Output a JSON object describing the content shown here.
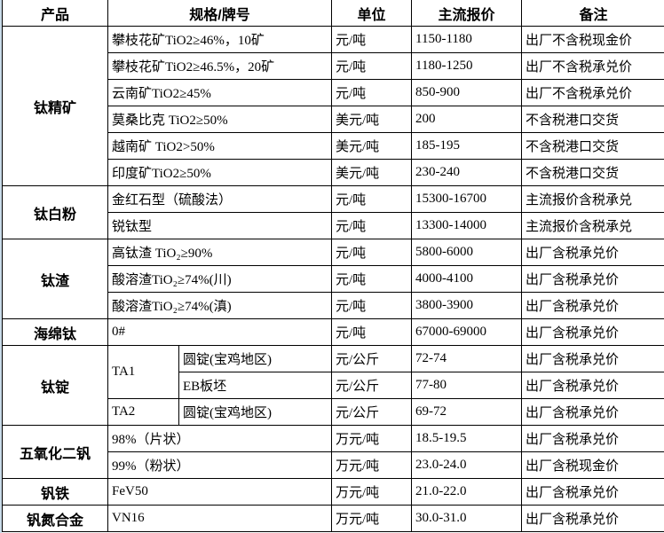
{
  "headers": [
    "产品",
    "规格/牌号",
    "单位",
    "主流报价",
    "备注"
  ],
  "groups": [
    {
      "product": "钛精矿",
      "rows": [
        {
          "spec": "攀枝花矿TiO2≥46%，10矿",
          "unit": "元/吨",
          "price": "1150-1180",
          "note": "出厂不含税现金价"
        },
        {
          "spec": "攀枝花矿TiO2≥46.5%，20矿",
          "unit": "元/吨",
          "price": "1180-1250",
          "note": "出厂不含税承兑价"
        },
        {
          "spec": "云南矿TiO2≥45%",
          "unit": "元/吨",
          "price": "850-900",
          "note": "出厂不含税承兑价"
        },
        {
          "spec": "莫桑比克 TiO2≥50%",
          "unit": "美元/吨",
          "price": "200",
          "note": "不含税港口交货"
        },
        {
          "spec": "越南矿 TiO2>50%",
          "unit": "美元/吨",
          "price": "185-195",
          "note": "不含税港口交货"
        },
        {
          "spec": "印度矿TiO2≥50%",
          "unit": "美元/吨",
          "price": "230-240",
          "note": "不含税港口交货"
        }
      ]
    },
    {
      "product": "钛白粉",
      "rows": [
        {
          "spec": "金红石型（硫酸法）",
          "unit": "元/吨",
          "price": "15300-16700",
          "note": "主流报价含税承兑"
        },
        {
          "spec": "锐钛型",
          "unit": "元/吨",
          "price": "13300-14000",
          "note": "主流报价含税承兑"
        }
      ]
    },
    {
      "product": "钛渣",
      "rows": [
        {
          "spec": "高钛渣 TiO₂≥90%",
          "unit": "元/吨",
          "price": "5800-6000",
          "note": "出厂含税承兑价"
        },
        {
          "spec": "酸溶渣TiO₂≥74%(川)",
          "unit": "元/吨",
          "price": "4000-4100",
          "note": "出厂含税承兑价"
        },
        {
          "spec": "酸溶渣TiO₂≥74%(滇)",
          "unit": "元/吨",
          "price": "3800-3900",
          "note": "出厂含税承兑价"
        }
      ]
    },
    {
      "product": "海绵钛",
      "rows": [
        {
          "spec": "0#",
          "unit": "元/吨",
          "price": "67000-69000",
          "note": "出厂含税承兑价"
        }
      ]
    },
    {
      "product": "钛锭",
      "rows": [
        {
          "grade": "TA1",
          "grade_span": 2,
          "spec": "圆锭(宝鸡地区)",
          "unit": "元/公斤",
          "price": "72-74",
          "note": "出厂含税承兑价"
        },
        {
          "spec": "EB板坯",
          "unit": "元/公斤",
          "price": "77-80",
          "note": "出厂含税承兑价"
        },
        {
          "grade": "TA2",
          "grade_span": 1,
          "spec": "圆锭(宝鸡地区)",
          "unit": "元/公斤",
          "price": "69-72",
          "note": "出厂含税承兑价"
        }
      ]
    },
    {
      "product": "五氧化二钒",
      "rows": [
        {
          "spec": "98%（片状）",
          "unit": "万元/吨",
          "price": "18.5-19.5",
          "note": "出厂含税承兑价"
        },
        {
          "spec": "99%（粉状）",
          "unit": "万元/吨",
          "price": "23.0-24.0",
          "note": "出厂含税现金价"
        }
      ]
    },
    {
      "product": "钒铁",
      "rows": [
        {
          "spec": "FeV50",
          "unit": "万元/吨",
          "price": "21.0-22.0",
          "note": "出厂含税承兑价"
        }
      ]
    },
    {
      "product": "钒氮合金",
      "rows": [
        {
          "spec": "VN16",
          "unit": "万元/吨",
          "price": "30.0-31.0",
          "note": "出厂含税承兑价"
        }
      ]
    }
  ]
}
